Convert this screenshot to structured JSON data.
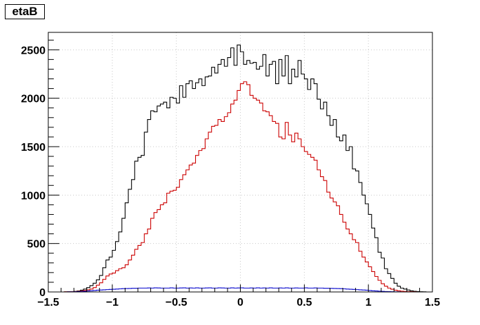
{
  "chart_data": {
    "type": "histogram",
    "title": "etaB",
    "xlabel": "",
    "ylabel": "",
    "xlim": [
      -1.5,
      1.5
    ],
    "ylim": [
      0,
      2680
    ],
    "grid": true,
    "legend": "none",
    "x_ticks": [
      -1.5,
      -1,
      -0.5,
      0,
      0.5,
      1,
      1.5
    ],
    "x_tick_labels": [
      "−1.5",
      "−1",
      "−0.5",
      "0",
      "0.5",
      "1",
      "1.5"
    ],
    "y_ticks": [
      0,
      500,
      1000,
      1500,
      2000,
      2500
    ],
    "y_tick_labels": [
      "0",
      "500",
      "1000",
      "1500",
      "2000",
      "2500"
    ],
    "bin_edges": {
      "start": -1.5,
      "end": 1.5,
      "n_bins": 120
    },
    "series": [
      {
        "color": "#000000",
        "values": [
          0,
          0,
          0,
          0,
          0,
          1,
          2,
          3,
          6,
          10,
          18,
          30,
          45,
          65,
          90,
          125,
          170,
          250,
          330,
          360,
          430,
          520,
          620,
          760,
          920,
          1060,
          1160,
          1350,
          1390,
          1410,
          1650,
          1780,
          1870,
          1860,
          1920,
          1940,
          1960,
          1900,
          2010,
          2000,
          1950,
          2130,
          2010,
          2150,
          2180,
          2100,
          2160,
          2200,
          2130,
          2220,
          2230,
          2320,
          2260,
          2350,
          2400,
          2330,
          2420,
          2520,
          2340,
          2550,
          2480,
          2350,
          2390,
          2360,
          2370,
          2300,
          2330,
          2450,
          2230,
          2350,
          2380,
          2150,
          2400,
          2230,
          2440,
          2150,
          2300,
          2220,
          2390,
          2250,
          2200,
          2090,
          2200,
          2150,
          1990,
          1890,
          1960,
          1820,
          1720,
          1780,
          1600,
          1560,
          1620,
          1460,
          1500,
          1270,
          1250,
          1130,
          1000,
          910,
          800,
          660,
          560,
          410,
          350,
          240,
          190,
          140,
          90,
          60,
          40,
          30,
          20,
          12,
          7,
          4,
          2,
          1,
          0,
          0
        ]
      },
      {
        "color": "#cc0000",
        "values": [
          0,
          0,
          0,
          0,
          0,
          1,
          1,
          2,
          4,
          6,
          9,
          15,
          22,
          30,
          45,
          70,
          95,
          130,
          165,
          185,
          195,
          220,
          240,
          250,
          280,
          330,
          380,
          440,
          480,
          510,
          600,
          650,
          760,
          820,
          850,
          900,
          920,
          1020,
          1040,
          1050,
          1080,
          1160,
          1210,
          1260,
          1310,
          1330,
          1410,
          1460,
          1480,
          1580,
          1650,
          1710,
          1720,
          1780,
          1760,
          1810,
          1850,
          1940,
          1980,
          2080,
          2150,
          2170,
          2140,
          2030,
          2000,
          1980,
          1950,
          1870,
          1860,
          1820,
          1760,
          1740,
          1600,
          1580,
          1750,
          1620,
          1550,
          1640,
          1580,
          1500,
          1450,
          1420,
          1390,
          1360,
          1260,
          1190,
          1150,
          1030,
          970,
          930,
          890,
          800,
          720,
          650,
          600,
          540,
          510,
          420,
          360,
          310,
          260,
          210,
          160,
          120,
          85,
          60,
          40,
          28,
          18,
          12,
          8,
          5,
          3,
          2,
          1,
          0,
          0,
          0,
          0,
          0
        ]
      },
      {
        "color": "#0000cc",
        "values": [
          0,
          0,
          0,
          0,
          0,
          0,
          1,
          1,
          2,
          3,
          5,
          7,
          10,
          12,
          15,
          18,
          20,
          22,
          24,
          26,
          28,
          30,
          32,
          34,
          35,
          36,
          38,
          38,
          40,
          40,
          40,
          41,
          40,
          42,
          41,
          40,
          40,
          40,
          42,
          40,
          40,
          41,
          42,
          40,
          41,
          40,
          42,
          40,
          40,
          41,
          42,
          40,
          40,
          42,
          41,
          40,
          40,
          42,
          40,
          41,
          42,
          40,
          40,
          41,
          40,
          42,
          40,
          41,
          40,
          42,
          40,
          40,
          41,
          40,
          42,
          40,
          40,
          41,
          40,
          40,
          42,
          40,
          40,
          41,
          40,
          40,
          38,
          38,
          37,
          36,
          35,
          34,
          32,
          30,
          28,
          26,
          24,
          22,
          20,
          18,
          15,
          12,
          10,
          8,
          6,
          4,
          3,
          2,
          1,
          1,
          0,
          0,
          0,
          0,
          0,
          0,
          0,
          0,
          0,
          0
        ]
      }
    ]
  }
}
